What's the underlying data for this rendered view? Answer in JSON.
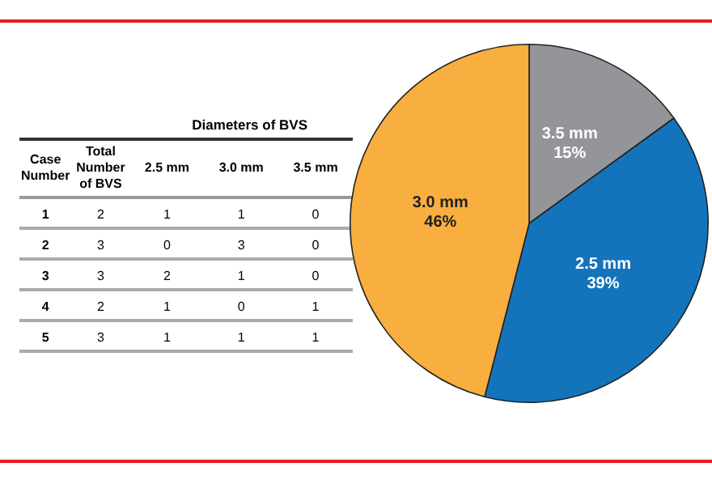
{
  "chart_data": [
    {
      "type": "heatmap",
      "title": "Diameters of BVS",
      "ylabel": "Case Number",
      "categories": [
        "Total Number of BVS",
        "2.5 mm",
        "3.0 mm",
        "3.5 mm"
      ],
      "y_categories": [
        "1",
        "2",
        "3",
        "4",
        "5"
      ],
      "cells": [
        [
          2,
          1,
          1,
          0
        ],
        [
          3,
          0,
          3,
          0
        ],
        [
          3,
          2,
          1,
          0
        ],
        [
          2,
          1,
          0,
          1
        ],
        [
          3,
          1,
          1,
          1
        ]
      ],
      "data_labels": true
    },
    {
      "type": "pie",
      "categories": [
        "3.5 mm",
        "2.5 mm",
        "3.0 mm"
      ],
      "values": [
        15,
        39,
        46
      ],
      "colors": [
        "#939598",
        "#1474bb",
        "#f9ae40"
      ],
      "value_labels": [
        "15%",
        "39%",
        "46%"
      ],
      "legend": false
    }
  ]
}
